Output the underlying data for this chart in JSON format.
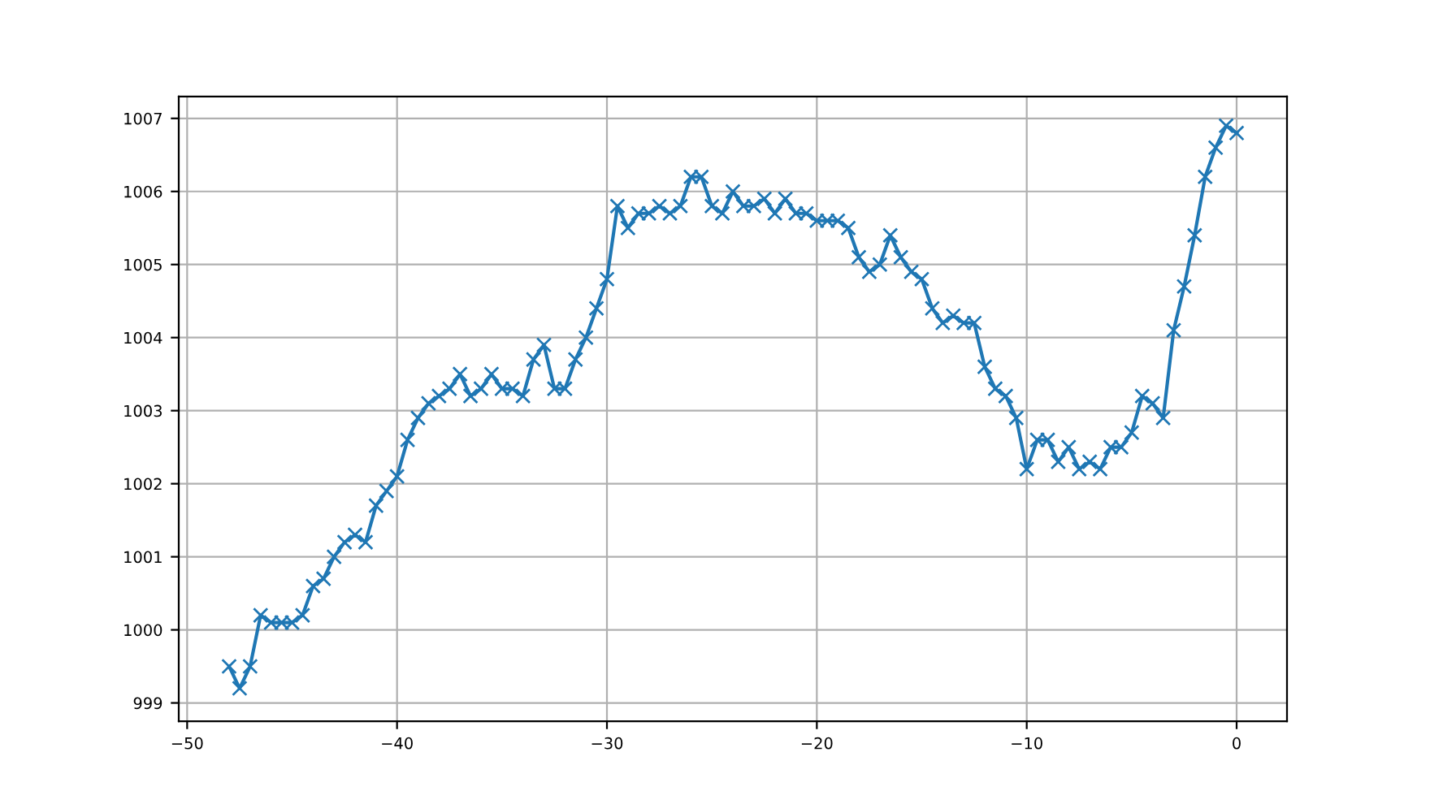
{
  "chart_data": {
    "type": "line",
    "x": [
      -48,
      -47.5,
      -47,
      -46.5,
      -46,
      -45.5,
      -45,
      -44.5,
      -44,
      -43.5,
      -43,
      -42.5,
      -42,
      -41.5,
      -41,
      -40.5,
      -40,
      -39.5,
      -39,
      -38.5,
      -38,
      -37.5,
      -37,
      -36.5,
      -36,
      -35.5,
      -35,
      -34.5,
      -34,
      -33.5,
      -33,
      -32.5,
      -32,
      -31.5,
      -31,
      -30.5,
      -30,
      -29.5,
      -29,
      -28.5,
      -28,
      -27.5,
      -27,
      -26.5,
      -26,
      -25.5,
      -25,
      -24.5,
      -24,
      -23.5,
      -23,
      -22.5,
      -22,
      -21.5,
      -21,
      -20.5,
      -20,
      -19.5,
      -19,
      -18.5,
      -18,
      -17.5,
      -17,
      -16.5,
      -16,
      -15.5,
      -15,
      -14.5,
      -14,
      -13.5,
      -13,
      -12.5,
      -12,
      -11.5,
      -11,
      -10.5,
      -10,
      -9.5,
      -9,
      -8.5,
      -8,
      -7.5,
      -7,
      -6.5,
      -6,
      -5.5,
      -5,
      -4.5,
      -4,
      -3.5,
      -3,
      -2.5,
      -2,
      -1.5,
      -1,
      -0.5,
      0
    ],
    "series": [
      {
        "color": "#1f77b4",
        "values": [
          999.5,
          999.2,
          999.5,
          1000.2,
          1000.1,
          1000.1,
          1000.1,
          1000.2,
          1000.6,
          1000.7,
          1001.0,
          1001.2,
          1001.3,
          1001.2,
          1001.7,
          1001.9,
          1002.1,
          1002.6,
          1002.9,
          1003.1,
          1003.2,
          1003.3,
          1003.5,
          1003.2,
          1003.3,
          1003.5,
          1003.3,
          1003.3,
          1003.2,
          1003.7,
          1003.9,
          1003.3,
          1003.3,
          1003.7,
          1004.0,
          1004.4,
          1004.8,
          1005.8,
          1005.5,
          1005.7,
          1005.7,
          1005.8,
          1005.7,
          1005.8,
          1006.2,
          1006.2,
          1005.8,
          1005.7,
          1006.0,
          1005.8,
          1005.8,
          1005.9,
          1005.7,
          1005.9,
          1005.7,
          1005.7,
          1005.6,
          1005.6,
          1005.6,
          1005.5,
          1005.1,
          1004.9,
          1005.0,
          1005.4,
          1005.1,
          1004.9,
          1004.8,
          1004.4,
          1004.2,
          1004.3,
          1004.2,
          1004.2,
          1003.6,
          1003.3,
          1003.2,
          1002.9,
          1002.2,
          1002.6,
          1002.6,
          1002.3,
          1002.5,
          1002.2,
          1002.3,
          1002.2,
          1002.5,
          1002.5,
          1002.7,
          1003.2,
          1003.1,
          1002.9,
          1004.1,
          1004.7,
          1005.4,
          1006.2,
          1006.6,
          1006.9,
          1006.8
        ]
      }
    ],
    "xlim": [
      -50.4,
      2.4
    ],
    "xticks": [
      {
        "value": -50,
        "label": "−50"
      },
      {
        "value": -40,
        "label": "−40"
      },
      {
        "value": -30,
        "label": "−30"
      },
      {
        "value": -20,
        "label": "−20"
      },
      {
        "value": -10,
        "label": "−10"
      },
      0
    ],
    "ylim": [
      998.75,
      1007.3
    ],
    "yticks": [
      999,
      1000,
      1001,
      1002,
      1003,
      1004,
      1005,
      1006,
      1007
    ],
    "grid": true,
    "marker": "cross",
    "line_style": "solid"
  }
}
